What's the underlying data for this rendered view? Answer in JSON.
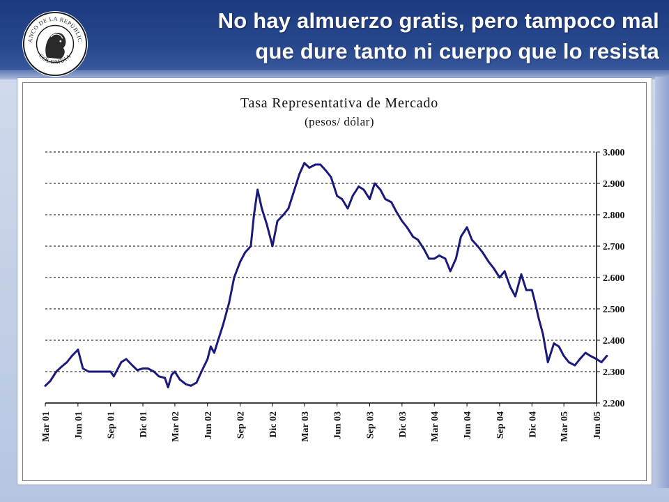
{
  "slide": {
    "title_line1": "No hay almuerzo gratis, pero tampoco mal",
    "title_line2": "que dure tanto ni cuerpo que lo resista",
    "seal_text_top": "BANCO DE LA REPÚBLICA",
    "seal_text_bottom": "COLOMBIA"
  },
  "colors": {
    "header": "#27478d",
    "series": "#1a1a7a",
    "gridline": "#000000"
  },
  "chart_data": {
    "type": "line",
    "title": "Tasa Representativa de Mercado",
    "subtitle": "(pesos/ dólar)",
    "xlabel": "",
    "ylabel": "",
    "y_axis_side": "right",
    "ylim": [
      2200,
      3000
    ],
    "yticks": [
      2200,
      2300,
      2400,
      2500,
      2600,
      2700,
      2800,
      2900,
      3000
    ],
    "ytick_labels": [
      "2.200",
      "2.300",
      "2.400",
      "2.500",
      "2.600",
      "2.700",
      "2.800",
      "2.900",
      "3.000"
    ],
    "grid": "horizontal-dashed",
    "xlim": [
      "2001-03",
      "2005-06"
    ],
    "xticks": [
      "2001-03",
      "2001-06",
      "2001-09",
      "2001-12",
      "2002-03",
      "2002-06",
      "2002-09",
      "2002-12",
      "2003-03",
      "2003-06",
      "2003-09",
      "2003-12",
      "2004-03",
      "2004-06",
      "2004-09",
      "2004-12",
      "2005-03",
      "2005-06"
    ],
    "xtick_labels": [
      "Mar 01",
      "Jun 01",
      "Sep 01",
      "Dic 01",
      "Mar 02",
      "Jun 02",
      "Sep 02",
      "Dic 02",
      "Mar 03",
      "Jun 03",
      "Sep 03",
      "Dic 03",
      "Mar 04",
      "Jun 04",
      "Sep 04",
      "Dic 04",
      "Mar 05",
      "Jun 05"
    ],
    "series": [
      {
        "x": [
          "2001-03-01",
          "2001-03-15",
          "2001-04-01",
          "2001-04-15",
          "2001-05-01",
          "2001-05-15",
          "2001-06-01",
          "2001-06-15",
          "2001-07-01",
          "2001-07-15",
          "2001-08-01",
          "2001-08-15",
          "2001-09-01",
          "2001-09-10",
          "2001-10-01",
          "2001-10-15",
          "2001-11-01",
          "2001-11-15",
          "2001-12-01",
          "2001-12-15",
          "2002-01-01",
          "2002-01-15",
          "2002-02-01",
          "2002-02-10",
          "2002-02-20",
          "2002-03-01",
          "2002-03-15",
          "2002-04-01",
          "2002-04-15",
          "2002-05-01",
          "2002-05-15",
          "2002-06-01",
          "2002-06-10",
          "2002-06-20",
          "2002-07-01",
          "2002-07-15",
          "2002-08-01",
          "2002-08-15",
          "2002-09-01",
          "2002-09-15",
          "2002-10-01",
          "2002-10-10",
          "2002-10-20",
          "2002-11-01",
          "2002-11-15",
          "2002-12-01",
          "2002-12-15",
          "2003-01-01",
          "2003-01-15",
          "2003-02-01",
          "2003-02-15",
          "2003-03-01",
          "2003-03-15",
          "2003-04-01",
          "2003-04-15",
          "2003-05-01",
          "2003-05-15",
          "2003-06-01",
          "2003-06-15",
          "2003-07-01",
          "2003-07-15",
          "2003-08-01",
          "2003-08-15",
          "2003-09-01",
          "2003-09-15",
          "2003-10-01",
          "2003-10-15",
          "2003-11-01",
          "2003-11-15",
          "2003-12-01",
          "2003-12-15",
          "2004-01-01",
          "2004-01-15",
          "2004-02-01",
          "2004-02-15",
          "2004-03-01",
          "2004-03-15",
          "2004-04-01",
          "2004-04-15",
          "2004-05-01",
          "2004-05-15",
          "2004-06-01",
          "2004-06-15",
          "2004-07-01",
          "2004-07-15",
          "2004-08-01",
          "2004-08-15",
          "2004-09-01",
          "2004-09-15",
          "2004-10-01",
          "2004-10-15",
          "2004-11-01",
          "2004-11-15",
          "2004-12-01",
          "2004-12-10",
          "2004-12-20",
          "2005-01-01",
          "2005-01-15",
          "2005-02-01",
          "2005-02-15",
          "2005-03-01",
          "2005-03-15",
          "2005-04-01",
          "2005-04-15",
          "2005-05-01",
          "2005-05-15",
          "2005-06-01",
          "2005-06-15",
          "2005-06-30"
        ],
        "y": [
          2255,
          2270,
          2300,
          2315,
          2330,
          2350,
          2370,
          2310,
          2300,
          2300,
          2300,
          2300,
          2300,
          2285,
          2330,
          2340,
          2320,
          2305,
          2310,
          2310,
          2300,
          2285,
          2280,
          2250,
          2290,
          2300,
          2275,
          2260,
          2255,
          2265,
          2300,
          2340,
          2380,
          2360,
          2400,
          2450,
          2520,
          2600,
          2650,
          2680,
          2700,
          2800,
          2880,
          2820,
          2770,
          2700,
          2780,
          2800,
          2820,
          2880,
          2930,
          2965,
          2950,
          2960,
          2960,
          2940,
          2920,
          2860,
          2850,
          2820,
          2860,
          2890,
          2880,
          2850,
          2900,
          2880,
          2850,
          2840,
          2810,
          2780,
          2760,
          2730,
          2720,
          2690,
          2660,
          2660,
          2670,
          2660,
          2620,
          2660,
          2730,
          2760,
          2720,
          2700,
          2680,
          2650,
          2630,
          2600,
          2620,
          2570,
          2540,
          2610,
          2560,
          2560,
          2520,
          2470,
          2420,
          2330,
          2390,
          2380,
          2350,
          2330,
          2320,
          2340,
          2360,
          2350,
          2340,
          2330,
          2350
        ]
      }
    ]
  }
}
